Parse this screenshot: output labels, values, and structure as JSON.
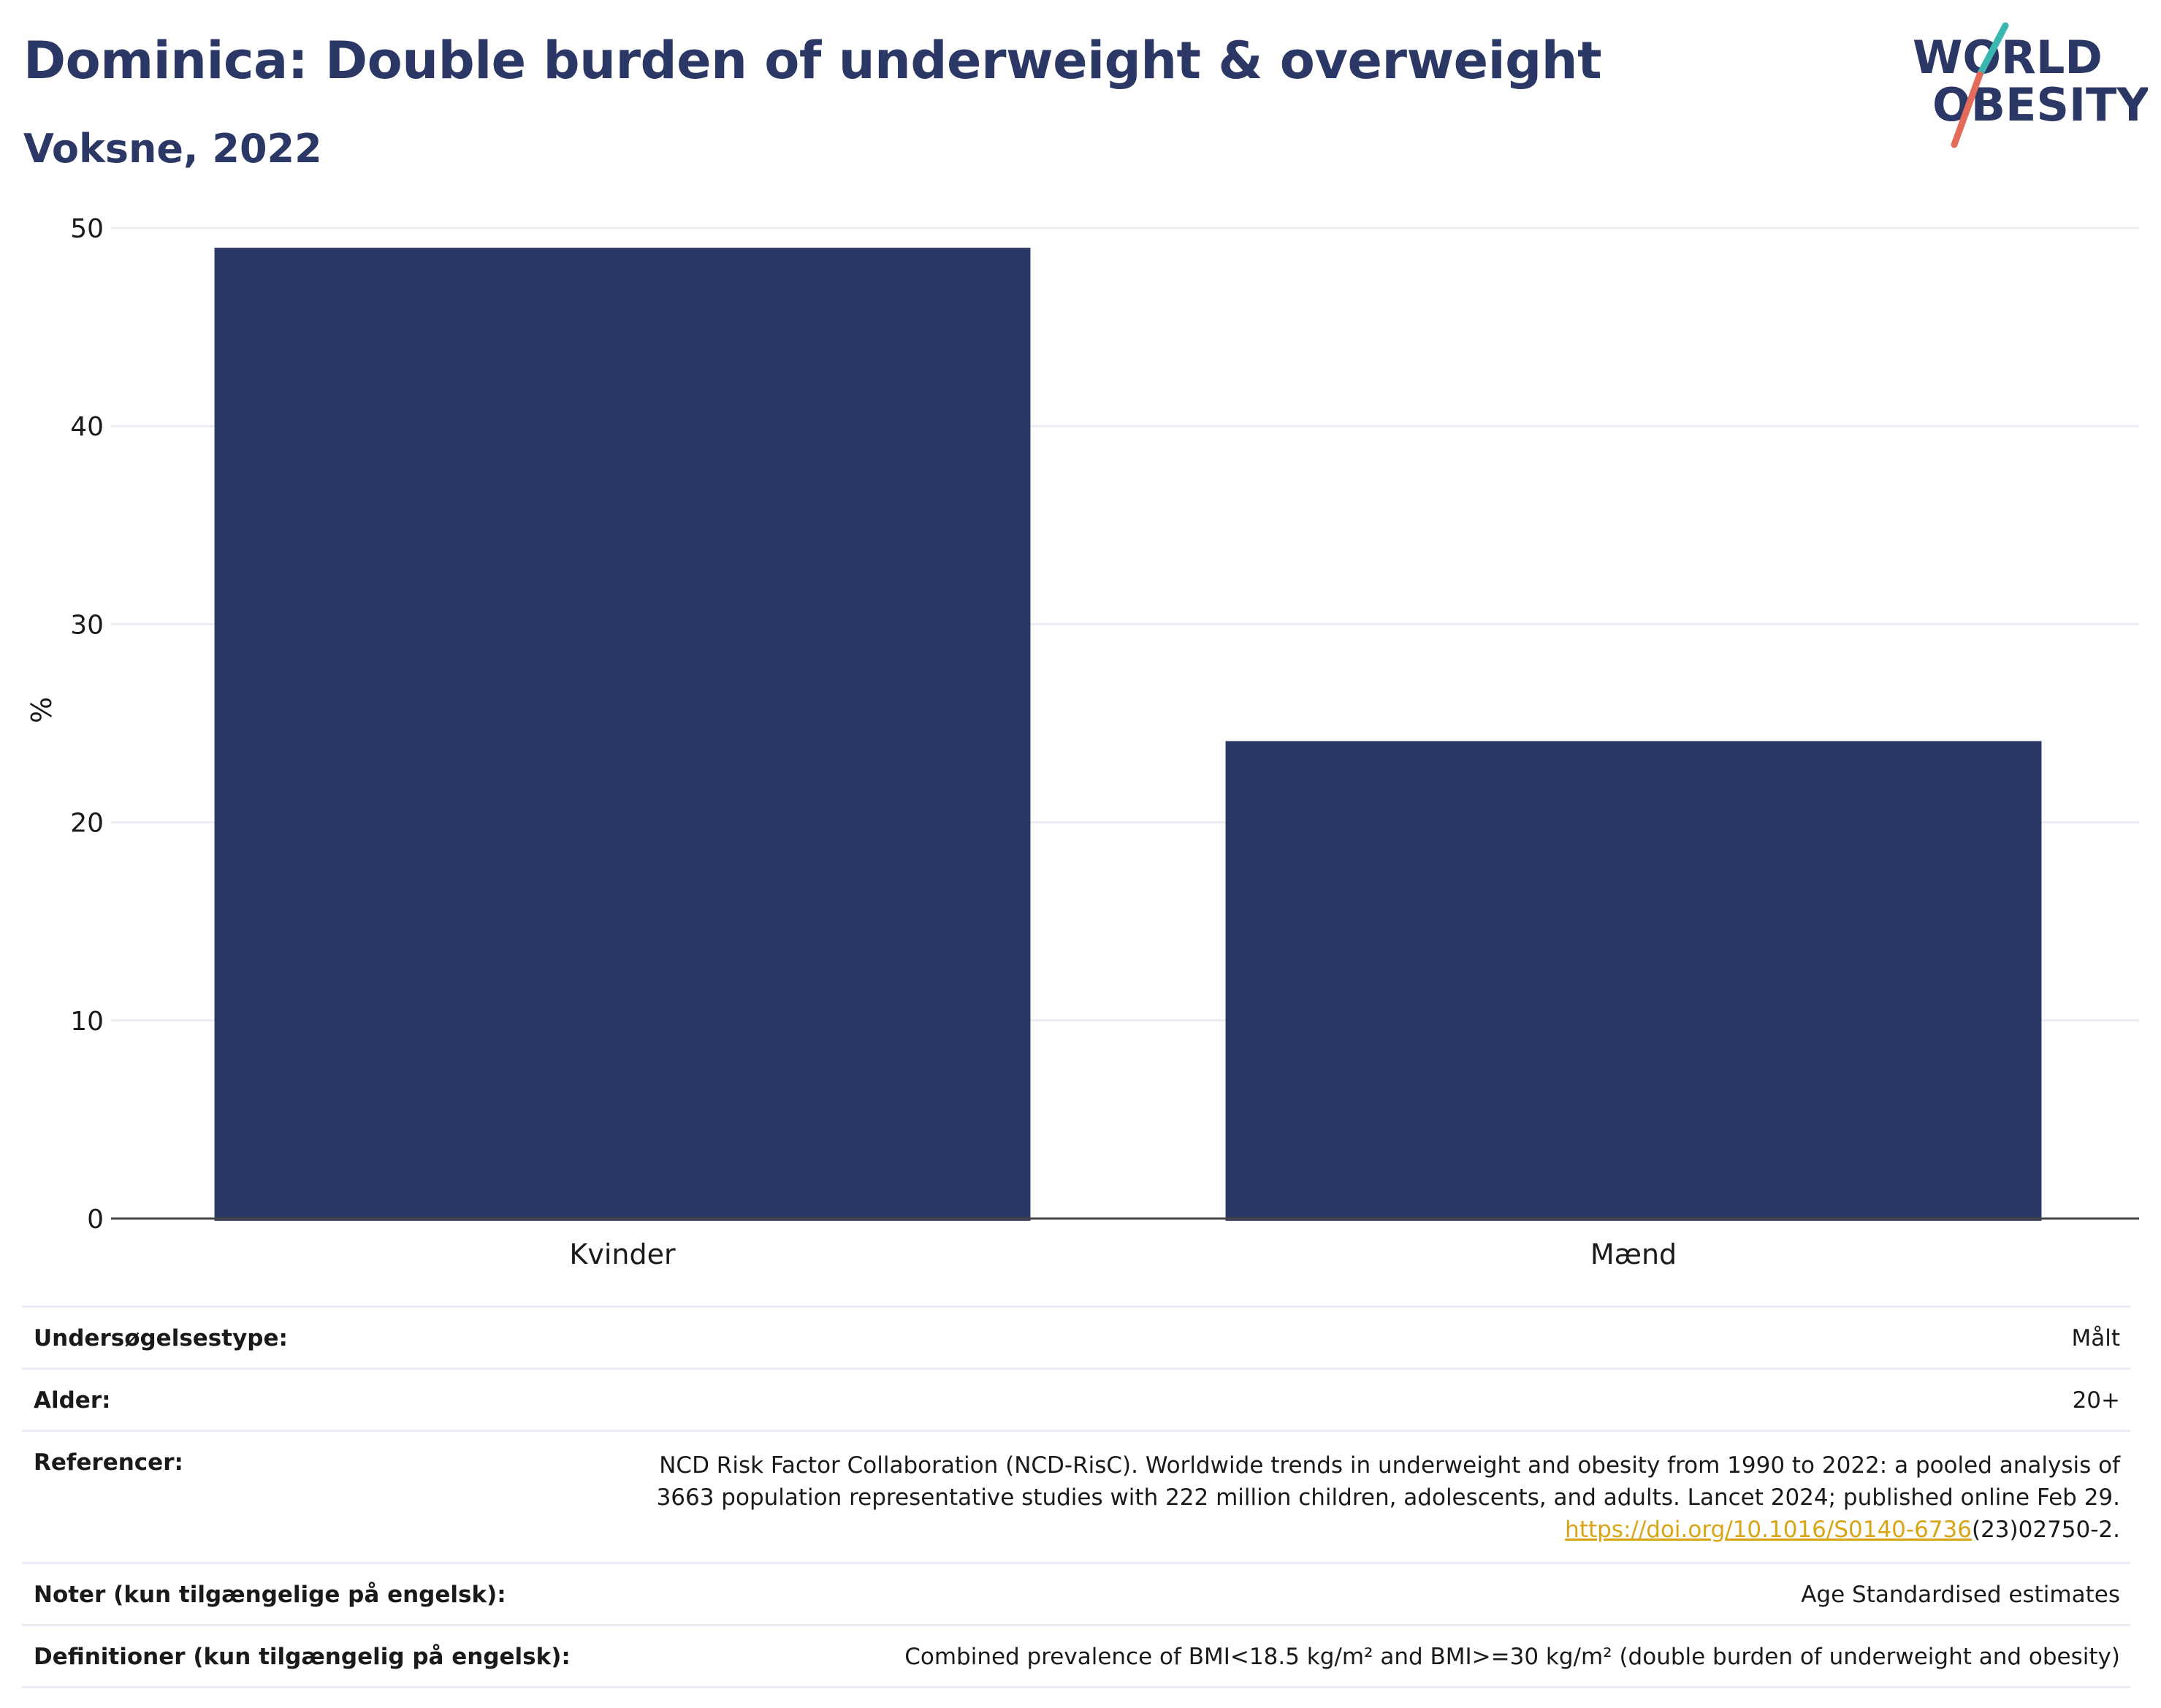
{
  "header": {
    "title": "Dominica: Double burden of underweight & overweight",
    "subtitle": "Voksne, 2022",
    "logo": {
      "line1": "WORLD",
      "line2": "OBESITY",
      "colors": {
        "text": "#2b3764",
        "slash_top": "#3bb7b0",
        "slash_bottom": "#e36b5a"
      }
    }
  },
  "chart_data": {
    "type": "bar",
    "categories": [
      "Kvinder",
      "Mænd"
    ],
    "values": [
      49.0,
      24.1
    ],
    "ylabel": "%",
    "xlabel": "",
    "ylim": [
      0,
      50
    ],
    "yticks": [
      0,
      10,
      20,
      30,
      40,
      50
    ],
    "grid": true,
    "bar_color": "#2b3764"
  },
  "meta": {
    "survey_type": {
      "label": "Undersøgelsestype:",
      "value": "Målt"
    },
    "age": {
      "label": "Alder:",
      "value": "20+"
    },
    "references": {
      "label": "Referencer:",
      "line1": "NCD Risk Factor Collaboration (NCD-RisC). Worldwide trends in underweight and obesity from 1990 to 2022: a pooled analysis of",
      "line2": "3663 population representative studies with 222 million children, adolescents, and adults. Lancet 2024; published online Feb 29.",
      "link": "https://doi.org/10.1016/S0140-6736",
      "link_suffix": "(23)02750-2."
    },
    "notes": {
      "label": "Noter (kun tilgængelige på engelsk):",
      "value": "Age Standardised estimates"
    },
    "definitions": {
      "label": "Definitioner (kun tilgængelig på engelsk):",
      "value": "Combined prevalence of BMI<18.5 kg/m² and BMI>=30 kg/m² (double burden of underweight and obesity)"
    }
  }
}
